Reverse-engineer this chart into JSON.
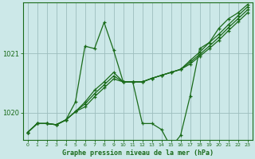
{
  "title": "Graphe pression niveau de la mer (hPa)",
  "bg_color": "#cce8e8",
  "plot_bg_color": "#cce8e8",
  "grid_color": "#9dbdbd",
  "line_color": "#1a6b1a",
  "xlim": [
    -0.5,
    23.5
  ],
  "ylim": [
    1019.55,
    1021.85
  ],
  "yticks": [
    1020,
    1021
  ],
  "xticks": [
    0,
    1,
    2,
    3,
    4,
    5,
    6,
    7,
    8,
    9,
    10,
    11,
    12,
    13,
    14,
    15,
    16,
    17,
    18,
    19,
    20,
    21,
    22,
    23
  ],
  "series1": [
    1019.67,
    1019.82,
    1019.82,
    1019.8,
    1019.88,
    1020.18,
    1021.12,
    1021.08,
    1021.52,
    1021.05,
    1020.52,
    1020.52,
    1019.82,
    1019.82,
    1019.72,
    1019.42,
    1019.62,
    1020.28,
    1021.08,
    1021.18,
    1021.42,
    1021.58,
    1021.68,
    1021.82
  ],
  "series2": [
    1019.67,
    1019.82,
    1019.82,
    1019.8,
    1019.88,
    1020.02,
    1020.18,
    1020.38,
    1020.52,
    1020.68,
    1020.52,
    1020.52,
    1020.52,
    1020.58,
    1020.63,
    1020.68,
    1020.73,
    1020.88,
    1021.02,
    1021.18,
    1021.32,
    1021.48,
    1021.63,
    1021.78
  ],
  "series3": [
    1019.67,
    1019.82,
    1019.82,
    1019.8,
    1019.88,
    1020.02,
    1020.15,
    1020.32,
    1020.47,
    1020.62,
    1020.52,
    1020.52,
    1020.52,
    1020.58,
    1020.63,
    1020.68,
    1020.73,
    1020.85,
    1020.98,
    1021.12,
    1021.27,
    1021.43,
    1021.58,
    1021.73
  ],
  "series4": [
    1019.67,
    1019.82,
    1019.82,
    1019.8,
    1019.88,
    1020.02,
    1020.1,
    1020.27,
    1020.42,
    1020.57,
    1020.52,
    1020.52,
    1020.52,
    1020.58,
    1020.63,
    1020.68,
    1020.73,
    1020.82,
    1020.95,
    1021.08,
    1021.22,
    1021.38,
    1021.53,
    1021.68
  ]
}
